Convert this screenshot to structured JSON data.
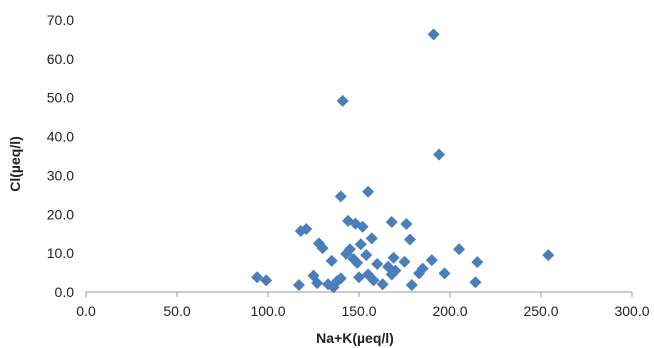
{
  "chart_data": {
    "type": "scatter",
    "xlabel": "Na+K(µeq/l)",
    "ylabel": "Cl(µeq/l)",
    "xlim": [
      0,
      300
    ],
    "ylim": [
      0,
      70
    ],
    "x_ticks": [
      0,
      50,
      100,
      150,
      200,
      250,
      300
    ],
    "y_ticks": [
      0,
      10,
      20,
      30,
      40,
      50,
      60,
      70
    ],
    "x_tick_labels": [
      "0.0",
      "50.0",
      "100.0",
      "150.0",
      "200.0",
      "250.0",
      "300.0"
    ],
    "y_tick_labels": [
      "0.0",
      "10.0",
      "20.0",
      "30.0",
      "40.0",
      "50.0",
      "60.0",
      "70.0"
    ],
    "grid": false,
    "marker": "diamond",
    "marker_color": "#4a7ebb",
    "points": [
      {
        "x": 94,
        "y": 3.8
      },
      {
        "x": 99,
        "y": 3.0
      },
      {
        "x": 117,
        "y": 1.8
      },
      {
        "x": 118,
        "y": 15.7
      },
      {
        "x": 121,
        "y": 16.2
      },
      {
        "x": 125,
        "y": 4.2
      },
      {
        "x": 127,
        "y": 2.3
      },
      {
        "x": 128,
        "y": 12.5
      },
      {
        "x": 130,
        "y": 11.3
      },
      {
        "x": 133,
        "y": 2.0
      },
      {
        "x": 135,
        "y": 8.0
      },
      {
        "x": 136,
        "y": 1.2
      },
      {
        "x": 138,
        "y": 2.8
      },
      {
        "x": 140,
        "y": 24.6
      },
      {
        "x": 140,
        "y": 3.5
      },
      {
        "x": 141,
        "y": 49.2
      },
      {
        "x": 143,
        "y": 9.8
      },
      {
        "x": 144,
        "y": 18.3
      },
      {
        "x": 145,
        "y": 11.0
      },
      {
        "x": 147,
        "y": 8.5
      },
      {
        "x": 148,
        "y": 17.6
      },
      {
        "x": 149,
        "y": 7.5
      },
      {
        "x": 150,
        "y": 3.8
      },
      {
        "x": 151,
        "y": 12.3
      },
      {
        "x": 152,
        "y": 16.8
      },
      {
        "x": 154,
        "y": 9.5
      },
      {
        "x": 155,
        "y": 25.8
      },
      {
        "x": 155,
        "y": 4.5
      },
      {
        "x": 157,
        "y": 13.8
      },
      {
        "x": 158,
        "y": 3.0
      },
      {
        "x": 160,
        "y": 7.2
      },
      {
        "x": 163,
        "y": 2.0
      },
      {
        "x": 166,
        "y": 6.5
      },
      {
        "x": 168,
        "y": 4.5
      },
      {
        "x": 168,
        "y": 18.0
      },
      {
        "x": 169,
        "y": 8.8
      },
      {
        "x": 170,
        "y": 5.5
      },
      {
        "x": 175,
        "y": 7.8
      },
      {
        "x": 176,
        "y": 17.5
      },
      {
        "x": 178,
        "y": 13.5
      },
      {
        "x": 179,
        "y": 1.8
      },
      {
        "x": 183,
        "y": 4.8
      },
      {
        "x": 185,
        "y": 6.0
      },
      {
        "x": 190,
        "y": 8.2
      },
      {
        "x": 191,
        "y": 66.3
      },
      {
        "x": 194,
        "y": 35.4
      },
      {
        "x": 197,
        "y": 4.8
      },
      {
        "x": 205,
        "y": 11.0
      },
      {
        "x": 214,
        "y": 2.5
      },
      {
        "x": 215,
        "y": 7.7
      },
      {
        "x": 254,
        "y": 9.5
      }
    ]
  }
}
